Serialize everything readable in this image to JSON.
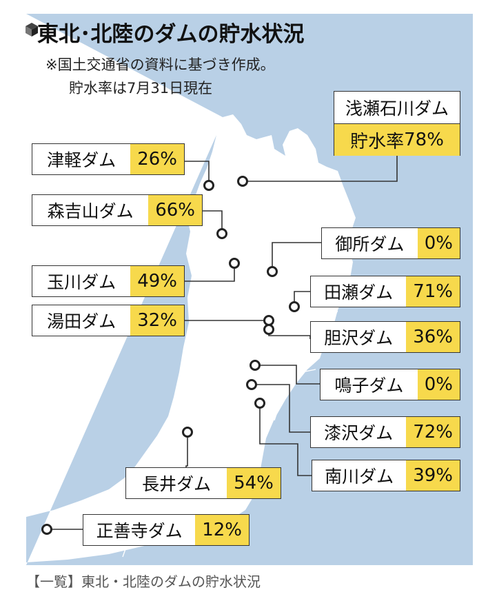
{
  "title": "東北･北陸のダムの貯水状況",
  "note_line1": "※国土交通省の資料に基づき作成。",
  "note_line2": "貯水率は7月31日現在",
  "caption": "【一覧】東北・北陸のダムの貯水状況",
  "colors": {
    "land": "#b9d0e6",
    "sea": "#ffffff",
    "highlight": "#f7d94c",
    "border": "#333333"
  },
  "dams": [
    {
      "name": "浅瀬石川ダム",
      "label_prefix": "貯水率",
      "rate": "78%",
      "rate_value": 78
    },
    {
      "name": "津軽ダム",
      "rate": "26%",
      "rate_value": 26
    },
    {
      "name": "森吉山ダム",
      "rate": "66%",
      "rate_value": 66
    },
    {
      "name": "御所ダム",
      "rate": "0%",
      "rate_value": 0
    },
    {
      "name": "玉川ダム",
      "rate": "49%",
      "rate_value": 49
    },
    {
      "name": "田瀬ダム",
      "rate": "71%",
      "rate_value": 71
    },
    {
      "name": "湯田ダム",
      "rate": "32%",
      "rate_value": 32
    },
    {
      "name": "胆沢ダム",
      "rate": "36%",
      "rate_value": 36
    },
    {
      "name": "鳴子ダム",
      "rate": "0%",
      "rate_value": 0
    },
    {
      "name": "漆沢ダム",
      "rate": "72%",
      "rate_value": 72
    },
    {
      "name": "南川ダム",
      "rate": "39%",
      "rate_value": 39
    },
    {
      "name": "長井ダム",
      "rate": "54%",
      "rate_value": 54
    },
    {
      "name": "正善寺ダム",
      "rate": "12%",
      "rate_value": 12
    }
  ]
}
